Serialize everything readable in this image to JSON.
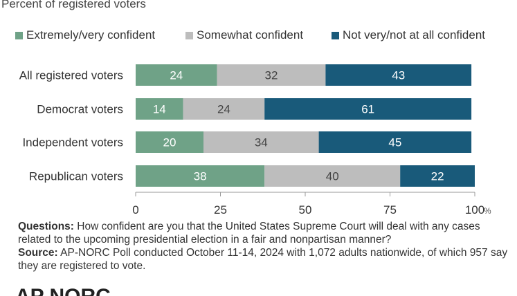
{
  "header": {
    "subtitle": "Percent of registered voters"
  },
  "colors": {
    "extremely": "#6fa287",
    "somewhat": "#bdbdbd",
    "notvery": "#195a7a",
    "axis": "#999999"
  },
  "chart_data": {
    "type": "bar",
    "orientation": "horizontal",
    "stacked": true,
    "categories": [
      "All registered voters",
      "Democrat voters",
      "Independent voters",
      "Republican voters"
    ],
    "series": [
      {
        "name": "Extremely/very confident",
        "values": [
          24,
          14,
          20,
          38
        ]
      },
      {
        "name": "Somewhat confident",
        "values": [
          32,
          24,
          34,
          40
        ]
      },
      {
        "name": "Not very/not at all confident",
        "values": [
          43,
          61,
          45,
          22
        ]
      }
    ],
    "xlim": [
      0,
      100
    ],
    "xticks": [
      "0",
      "25",
      "50",
      "75",
      "100"
    ],
    "xunit": "%",
    "legend": "top",
    "grid": false
  },
  "notes": {
    "questions_label": "Questions:",
    "questions_text": " How confident are you that the United States Supreme Court will deal with any cases related to the upcoming presidential election in a fair and nonpartisan manner?",
    "source_label": "Source:",
    "source_text": " AP-NORC Poll conducted October 11-14, 2024 with 1,072 adults nationwide, of which 957 say they are registered to vote."
  },
  "logo": {
    "text": "AP NORC"
  }
}
